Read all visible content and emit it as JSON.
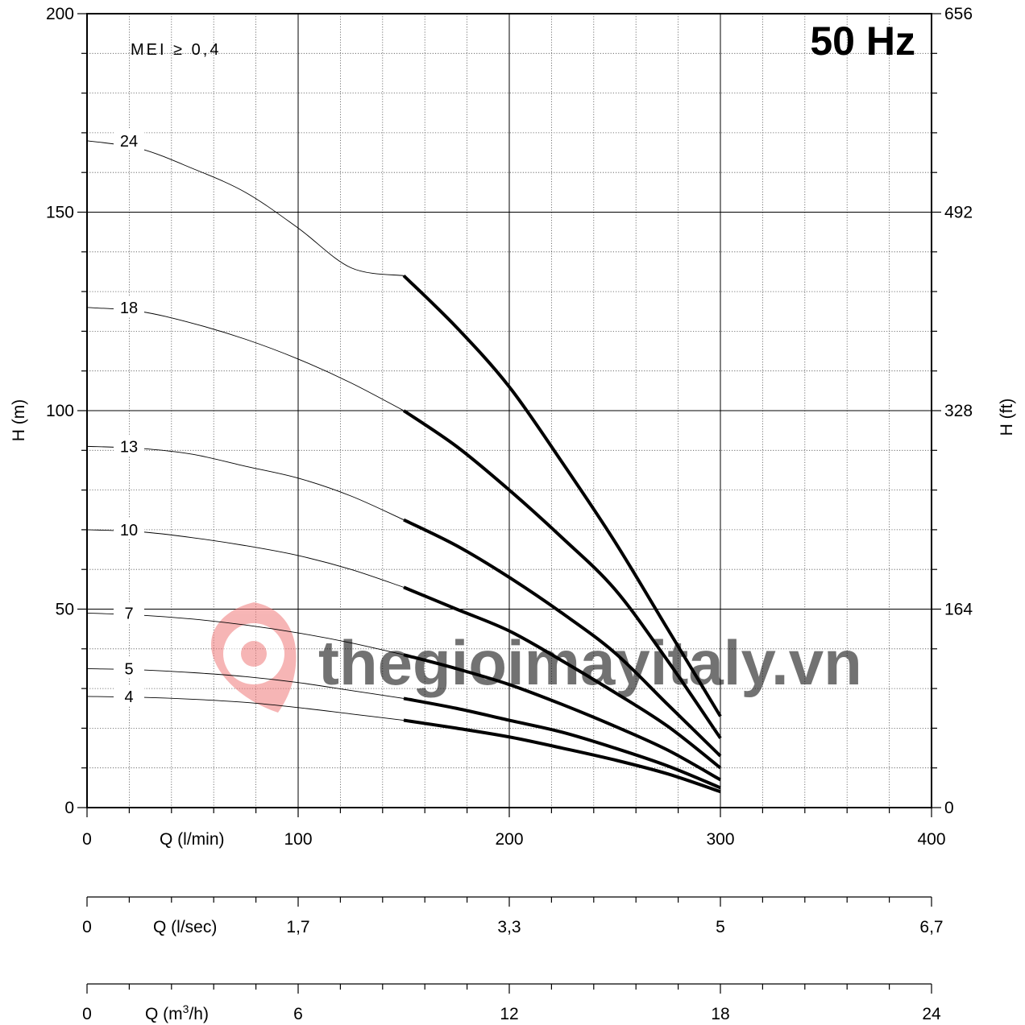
{
  "chart_data": {
    "type": "line",
    "frequency_label": "50 Hz",
    "annotation": "MEI ≥ 0,4",
    "watermark": "thegioimayitaly.vn",
    "y_left": {
      "label": "H (m)",
      "ticks": [
        "0",
        "50",
        "100",
        "150",
        "200"
      ],
      "range": [
        0,
        200
      ]
    },
    "y_right": {
      "label": "H (ft)",
      "ticks": [
        "0",
        "164",
        "328",
        "492",
        "656"
      ]
    },
    "x_axes": [
      {
        "label": "Q (l/min)",
        "ticks": [
          "0",
          "100",
          "200",
          "300",
          "400"
        ]
      },
      {
        "label": "Q (l/sec)",
        "ticks": [
          "0",
          "1,7",
          "3,3",
          "5",
          "6,7"
        ]
      },
      {
        "label_prefix": "Q (m",
        "label_sup": "3",
        "label_suffix": "/h)",
        "ticks": [
          "0",
          "6",
          "12",
          "18",
          "24"
        ]
      }
    ],
    "xlim": [
      0,
      400
    ],
    "ylim": [
      0,
      200
    ],
    "grid": true,
    "operating_range": [
      150,
      300
    ],
    "series": [
      {
        "name": "24",
        "points": [
          [
            0,
            168
          ],
          [
            25,
            166
          ],
          [
            50,
            161
          ],
          [
            75,
            155
          ],
          [
            100,
            146
          ],
          [
            125,
            136
          ],
          [
            150,
            134
          ],
          [
            175,
            121
          ],
          [
            200,
            106
          ],
          [
            225,
            87
          ],
          [
            250,
            67
          ],
          [
            275,
            45
          ],
          [
            300,
            23
          ]
        ]
      },
      {
        "name": "18",
        "points": [
          [
            0,
            126
          ],
          [
            25,
            125
          ],
          [
            50,
            122
          ],
          [
            75,
            118
          ],
          [
            100,
            113
          ],
          [
            125,
            107
          ],
          [
            150,
            100
          ],
          [
            175,
            91
          ],
          [
            200,
            80
          ],
          [
            225,
            68
          ],
          [
            250,
            55
          ],
          [
            275,
            37
          ],
          [
            300,
            17.5
          ]
        ]
      },
      {
        "name": "13",
        "points": [
          [
            0,
            91
          ],
          [
            25,
            90.5
          ],
          [
            50,
            89
          ],
          [
            75,
            86
          ],
          [
            100,
            83
          ],
          [
            125,
            78.5
          ],
          [
            150,
            72.5
          ],
          [
            175,
            66
          ],
          [
            200,
            58
          ],
          [
            225,
            49
          ],
          [
            250,
            39
          ],
          [
            275,
            26
          ],
          [
            300,
            13
          ]
        ]
      },
      {
        "name": "10",
        "points": [
          [
            0,
            70
          ],
          [
            25,
            69.5
          ],
          [
            50,
            68
          ],
          [
            75,
            66
          ],
          [
            100,
            63.5
          ],
          [
            125,
            60
          ],
          [
            150,
            55.5
          ],
          [
            175,
            50
          ],
          [
            200,
            44.5
          ],
          [
            225,
            37
          ],
          [
            250,
            29
          ],
          [
            275,
            20.5
          ],
          [
            300,
            10
          ]
        ]
      },
      {
        "name": "7",
        "points": [
          [
            0,
            49
          ],
          [
            25,
            48.5
          ],
          [
            50,
            47.5
          ],
          [
            75,
            46
          ],
          [
            100,
            44
          ],
          [
            125,
            41.5
          ],
          [
            150,
            38.5
          ],
          [
            175,
            35
          ],
          [
            200,
            31
          ],
          [
            225,
            26
          ],
          [
            250,
            20.5
          ],
          [
            275,
            14.5
          ],
          [
            300,
            7
          ]
        ]
      },
      {
        "name": "5",
        "points": [
          [
            0,
            35
          ],
          [
            25,
            34.7
          ],
          [
            50,
            34
          ],
          [
            75,
            33
          ],
          [
            100,
            31.5
          ],
          [
            125,
            29.5
          ],
          [
            150,
            27.5
          ],
          [
            175,
            25
          ],
          [
            200,
            22
          ],
          [
            225,
            19
          ],
          [
            250,
            15
          ],
          [
            275,
            10.5
          ],
          [
            300,
            5
          ]
        ]
      },
      {
        "name": "4",
        "points": [
          [
            0,
            28
          ],
          [
            25,
            27.8
          ],
          [
            50,
            27.3
          ],
          [
            75,
            26.5
          ],
          [
            100,
            25.2
          ],
          [
            125,
            23.6
          ],
          [
            150,
            22
          ],
          [
            175,
            20
          ],
          [
            200,
            17.8
          ],
          [
            225,
            15
          ],
          [
            250,
            12
          ],
          [
            275,
            8.5
          ],
          [
            300,
            4
          ]
        ]
      }
    ]
  }
}
